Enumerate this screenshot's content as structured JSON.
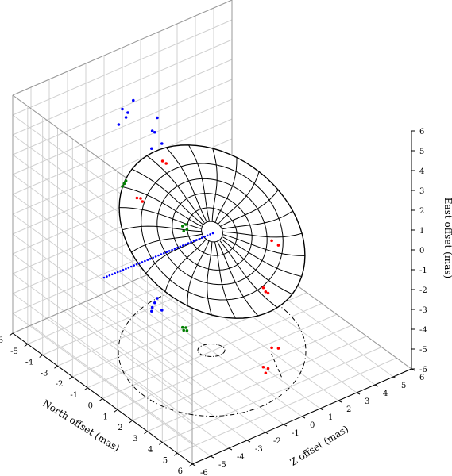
{
  "chart_data": {
    "type": "scatter",
    "projection": "3d",
    "title": "",
    "axes": {
      "north": {
        "label": "North offset (mas)",
        "range": [
          -6,
          6
        ],
        "ticks": [
          -6,
          -5,
          -4,
          -3,
          -2,
          -1,
          0,
          1,
          2,
          3,
          4,
          5,
          6
        ]
      },
      "z": {
        "label": "Z offset (mas)",
        "range": [
          -6,
          6
        ],
        "ticks": [
          -6,
          -5,
          -4,
          -3,
          -2,
          -1,
          0,
          1,
          2,
          3,
          4,
          5,
          6
        ]
      },
      "east": {
        "label": "East offset (mas)",
        "range": [
          -6,
          6
        ],
        "ticks": [
          -6,
          -5,
          -4,
          -3,
          -2,
          -1,
          0,
          1,
          2,
          3,
          4,
          5,
          6
        ]
      }
    },
    "grid": true,
    "surface": {
      "type": "ellipsoid",
      "wireframe": true,
      "color": "#000000"
    },
    "series": [
      {
        "color": "#0000ff",
        "points": [
          {
            "north": -4.2,
            "z": 0.3,
            "east": 2.6
          },
          {
            "north": -4.0,
            "z": 0.0,
            "east": 2.9
          },
          {
            "north": -3.8,
            "z": -0.2,
            "east": 2.2
          },
          {
            "north": -4.4,
            "z": 0.6,
            "east": 3.1
          },
          {
            "north": -3.6,
            "z": 0.2,
            "east": 2.4
          }
        ]
      },
      {
        "color": "#008000",
        "points": [
          {
            "north": -2.1,
            "z": 0.1,
            "east": -0.9
          },
          {
            "north": -2.0,
            "z": 0.2,
            "east": -0.8
          },
          {
            "north": -1.9,
            "z": 0.0,
            "east": -1.0
          },
          {
            "north": -1.8,
            "z": 0.1,
            "east": -0.9
          }
        ]
      },
      {
        "color": "#ff0000",
        "points": [
          {
            "north": 2.2,
            "z": 1.0,
            "east": -2.0
          },
          {
            "north": 2.4,
            "z": 1.1,
            "east": -2.2
          },
          {
            "north": 2.6,
            "z": 0.8,
            "east": -1.9
          },
          {
            "north": 1.3,
            "z": 2.2,
            "east": -0.6
          },
          {
            "north": 1.5,
            "z": 2.4,
            "east": -0.8
          }
        ]
      }
    ]
  }
}
